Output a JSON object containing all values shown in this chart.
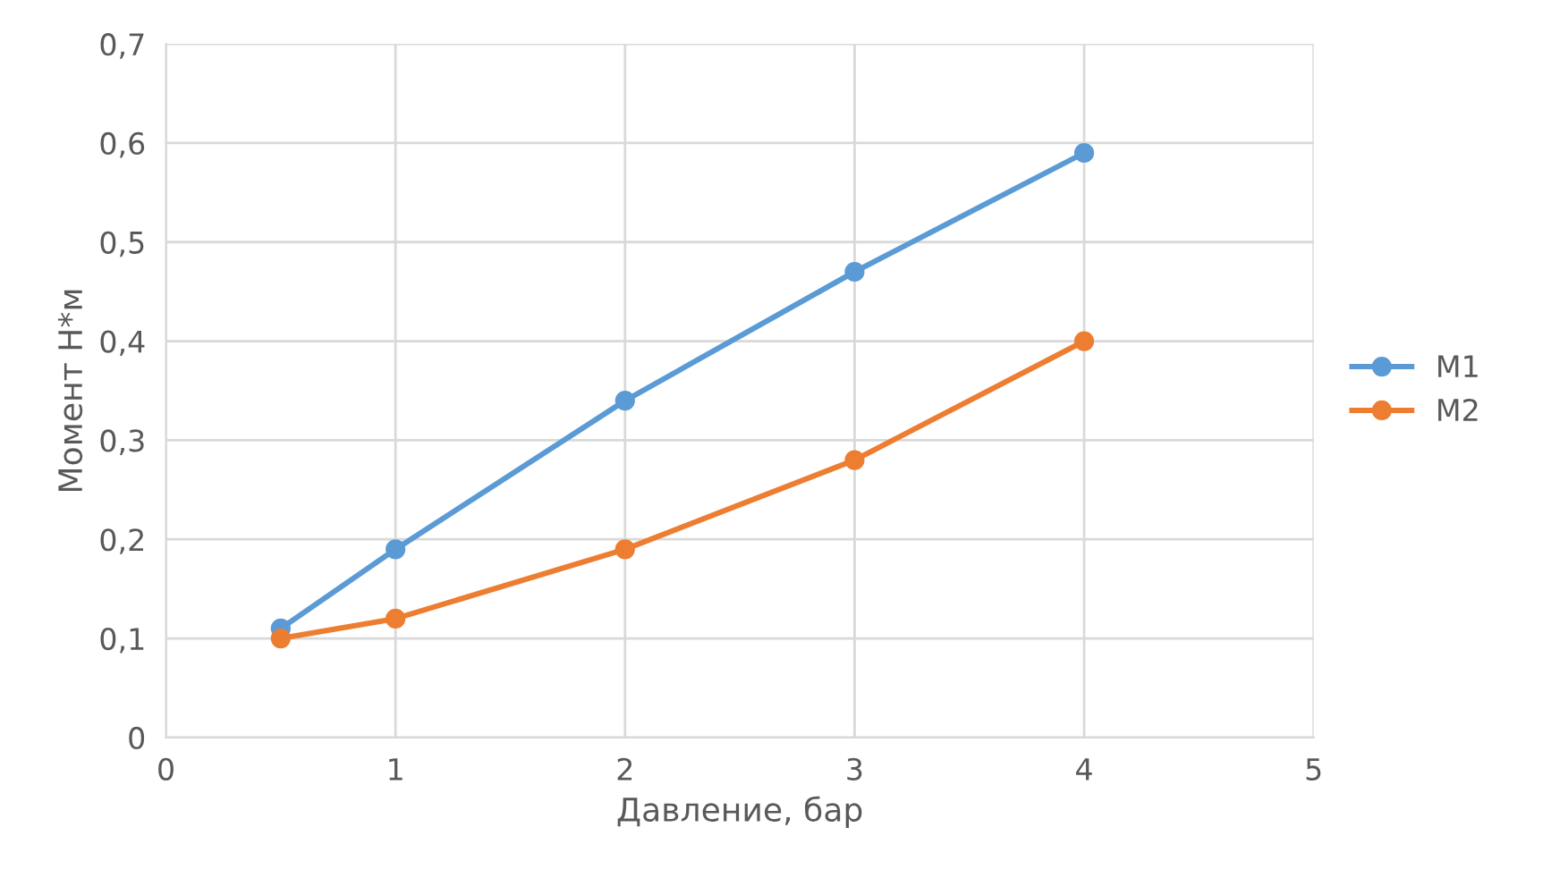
{
  "chart_data": {
    "type": "line",
    "xlabel": "Давление, бар",
    "ylabel": "Момент Н*м",
    "series": [
      {
        "name": "М1",
        "color": "#5b9bd5",
        "x": [
          0.5,
          1,
          2,
          3,
          4
        ],
        "values": [
          0.11,
          0.19,
          0.34,
          0.47,
          0.59
        ]
      },
      {
        "name": "М2",
        "color": "#ed7d31",
        "x": [
          0.5,
          1,
          2,
          3,
          4
        ],
        "values": [
          0.1,
          0.12,
          0.19,
          0.28,
          0.4
        ]
      }
    ],
    "xlim": [
      0,
      5
    ],
    "xticks": [
      0,
      1,
      2,
      3,
      4,
      5
    ],
    "ylim": [
      0,
      0.7
    ],
    "yticks": [
      0,
      {
        "value": 0.1,
        "label": "0,1"
      },
      {
        "value": 0.2,
        "label": "0,2"
      },
      {
        "value": 0.3,
        "label": "0,3"
      },
      {
        "value": 0.4,
        "label": "0,4"
      },
      {
        "value": 0.5,
        "label": "0,5"
      },
      {
        "value": 0.6,
        "label": "0,6"
      },
      {
        "value": 0.7,
        "label": "0,7"
      }
    ],
    "grid": true,
    "legend": "right",
    "marker": "circle",
    "line_style": "solid"
  }
}
